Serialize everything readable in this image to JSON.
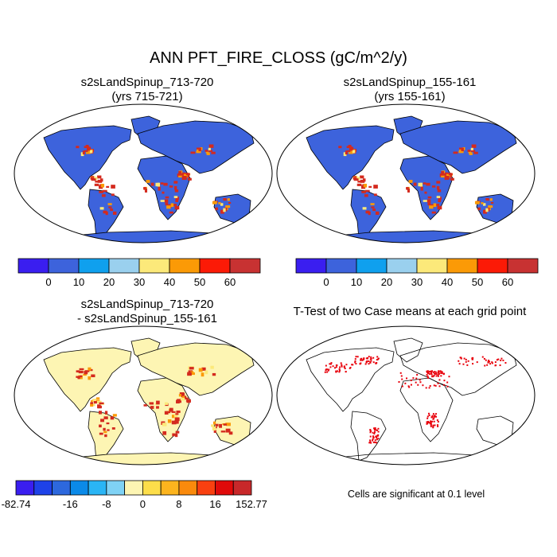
{
  "main_title": "ANN PFT_FIRE_CLOSS (gC/m^2/y)",
  "panels": [
    {
      "id": "case1",
      "title_line1": "s2sLandSpinup_713-720",
      "title_line2": "(yrs 715-721)"
    },
    {
      "id": "case2",
      "title_line1": "s2sLandSpinup_155-161",
      "title_line2": "(yrs 155-161)"
    },
    {
      "id": "diff",
      "title_line1": "s2sLandSpinup_713-720",
      "title_line2": "- s2sLandSpinup_155-161"
    },
    {
      "id": "ttest",
      "title_line1": "T-Test of two Case means at each grid point",
      "title_line2": ""
    }
  ],
  "colorbar_main": {
    "colors": [
      "#3a1ef0",
      "#3d63dc",
      "#0fa0ee",
      "#9ad0ee",
      "#fce97a",
      "#fb9a06",
      "#fc1a06",
      "#c83232"
    ],
    "labels": [
      "0",
      "10",
      "20",
      "30",
      "40",
      "50",
      "60"
    ]
  },
  "colorbar_diff": {
    "colors": [
      "#3a1ef0",
      "#1e42e8",
      "#2d68dd",
      "#0b8ae8",
      "#2ab5f5",
      "#7fd2f5",
      "#fdf5b3",
      "#fdde4a",
      "#fcb41e",
      "#fa8a0c",
      "#f94010",
      "#e00a0a",
      "#c8282a"
    ],
    "labels": [
      "-82.74",
      "-16",
      "-8",
      "0",
      "8",
      "16",
      "152.77"
    ]
  },
  "note": "Cells are significant at 0.1 level",
  "map_colors": {
    "ocean": "#ffffff",
    "land_case": "#3d63dc",
    "land_diff": "#fdf5b3",
    "fire_high": "#d42a1e",
    "fire_mid": "#fb9a06",
    "fire_low": "#fce97a",
    "signif": "#e8000b"
  }
}
